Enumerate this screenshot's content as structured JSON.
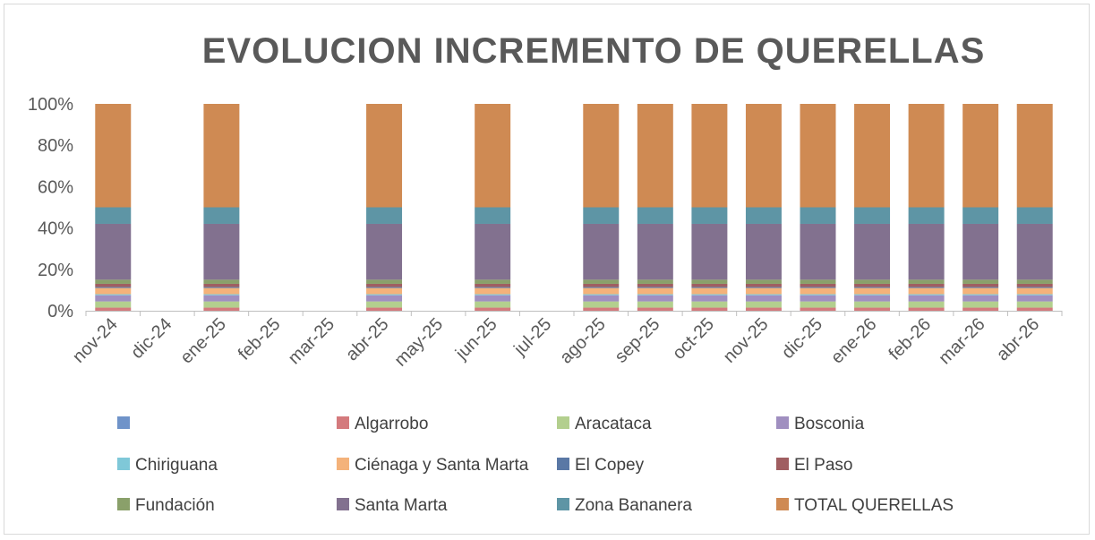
{
  "chart_data": {
    "type": "bar",
    "stacked": "percent",
    "title": "EVOLUCION INCREMENTO DE QUERELLAS",
    "xlabel": "",
    "ylabel": "",
    "ylim": [
      0,
      100
    ],
    "yticks": [
      "0%",
      "20%",
      "40%",
      "60%",
      "80%",
      "100%"
    ],
    "grid": false,
    "legend_position": "bottom",
    "categories": [
      "nov-24",
      "dic-24",
      "ene-25",
      "feb-25",
      "mar-25",
      "abr-25",
      "may-25",
      "jun-25",
      "jul-25",
      "ago-25",
      "sep-25",
      "oct-25",
      "nov-25",
      "dic-25",
      "ene-26",
      "feb-26",
      "mar-26",
      "abr-26"
    ],
    "series": [
      {
        "name": "",
        "color": "#6f93c9",
        "values": [
          0,
          0,
          0,
          0,
          0,
          0,
          0,
          0,
          0,
          0,
          0,
          0,
          0,
          0,
          0,
          0,
          0,
          0
        ]
      },
      {
        "name": "Algarrobo",
        "color": "#d47a7d",
        "values": [
          1.5,
          0,
          1.5,
          0,
          0,
          1.5,
          0,
          1.5,
          0,
          1.5,
          1.5,
          1.5,
          1.5,
          1.5,
          1.5,
          1.5,
          1.5,
          1.5
        ]
      },
      {
        "name": "Aracataca",
        "color": "#b3cf8e",
        "values": [
          3,
          0,
          3,
          0,
          0,
          3,
          0,
          3,
          0,
          3,
          3,
          3,
          3,
          3,
          3,
          3,
          3,
          3
        ]
      },
      {
        "name": "Bosconia",
        "color": "#a08fc0",
        "values": [
          3,
          0,
          3,
          0,
          0,
          3,
          0,
          3,
          0,
          3,
          3,
          3,
          3,
          3,
          3,
          3,
          3,
          3
        ]
      },
      {
        "name": "Chiriguana",
        "color": "#7fc8d8",
        "values": [
          0.5,
          0,
          0.5,
          0,
          0,
          0.5,
          0,
          0.5,
          0,
          0.5,
          0.5,
          0.5,
          0.5,
          0.5,
          0.5,
          0.5,
          0.5,
          0.5
        ]
      },
      {
        "name": "Ciénaga y Santa Marta",
        "color": "#f4b27a",
        "values": [
          3,
          0,
          3,
          0,
          0,
          3,
          0,
          3,
          0,
          3,
          3,
          3,
          3,
          3,
          3,
          3,
          3,
          3
        ]
      },
      {
        "name": "El Copey",
        "color": "#5a78a5",
        "values": [
          0.5,
          0,
          0.5,
          0,
          0,
          0.5,
          0,
          0.5,
          0,
          0.5,
          0.5,
          0.5,
          0.5,
          0.5,
          0.5,
          0.5,
          0.5,
          0.5
        ]
      },
      {
        "name": "El Paso",
        "color": "#a05e61",
        "values": [
          1.5,
          0,
          1.5,
          0,
          0,
          1.5,
          0,
          1.5,
          0,
          1.5,
          1.5,
          1.5,
          1.5,
          1.5,
          1.5,
          1.5,
          1.5,
          1.5
        ]
      },
      {
        "name": "Fundación",
        "color": "#8aa06a",
        "values": [
          2,
          0,
          2,
          0,
          0,
          2,
          0,
          2,
          0,
          2,
          2,
          2,
          2,
          2,
          2,
          2,
          2,
          2
        ]
      },
      {
        "name": "Santa Marta",
        "color": "#82718f",
        "values": [
          27,
          0,
          27,
          0,
          0,
          27,
          0,
          27,
          0,
          27,
          27,
          27,
          27,
          27,
          27,
          27,
          27,
          27
        ]
      },
      {
        "name": "Zona Bananera",
        "color": "#5e95a5",
        "values": [
          8,
          0,
          8,
          0,
          0,
          8,
          0,
          8,
          0,
          8,
          8,
          8,
          8,
          8,
          8,
          8,
          8,
          8
        ]
      },
      {
        "name": "TOTAL QUERELLAS",
        "color": "#cf8a53",
        "values": [
          50,
          0,
          50,
          0,
          0,
          50,
          0,
          50,
          0,
          50,
          50,
          50,
          50,
          50,
          50,
          50,
          50,
          50
        ]
      }
    ]
  }
}
